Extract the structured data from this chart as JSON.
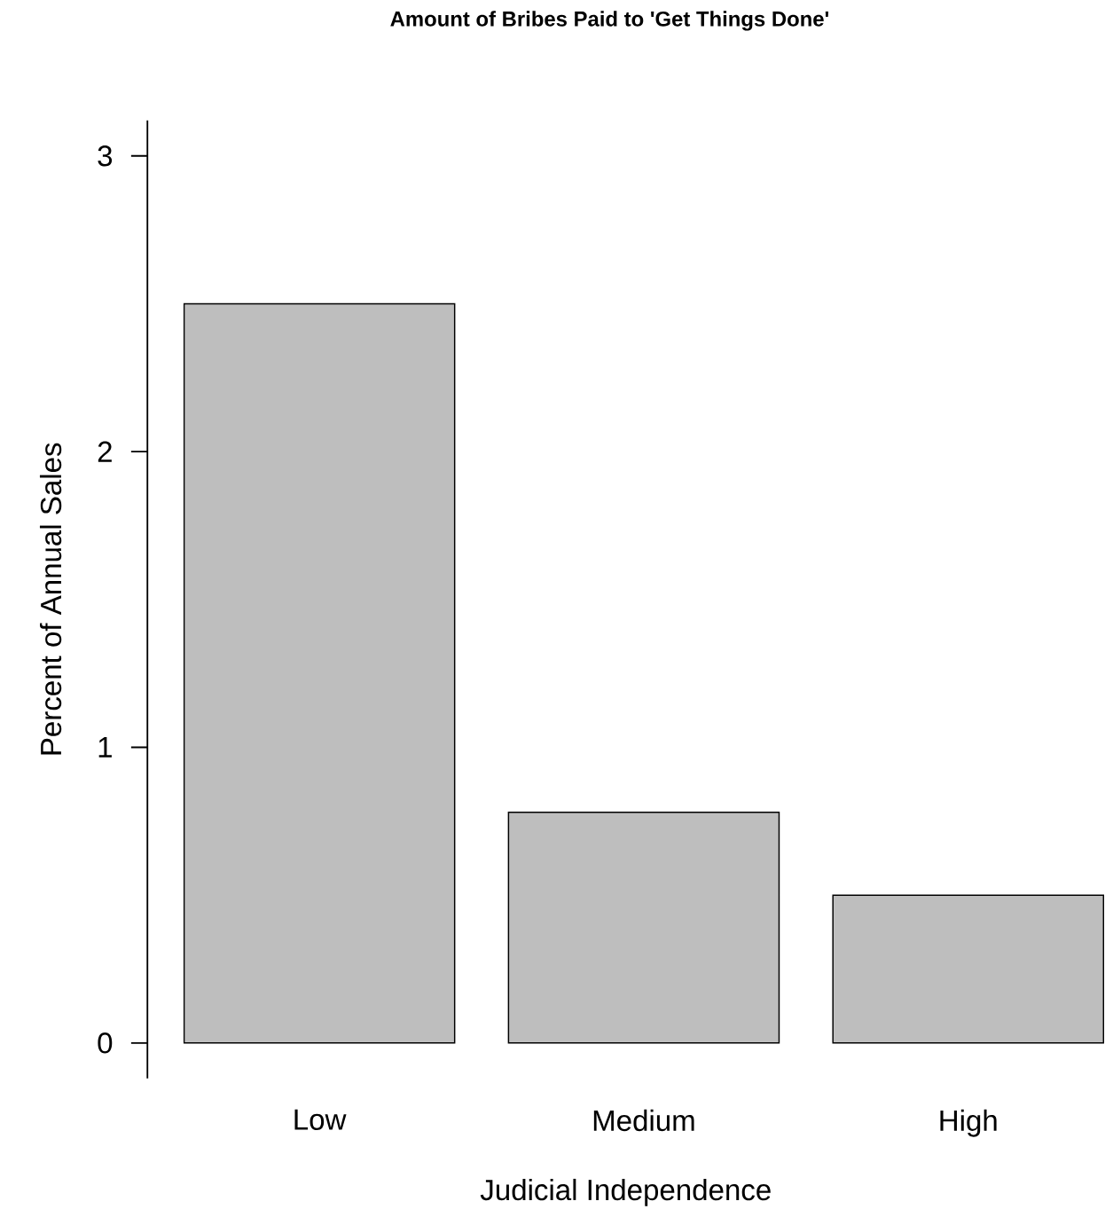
{
  "chart_data": {
    "type": "bar",
    "title": "Amount of Bribes Paid to 'Get Things Done'",
    "xlabel": "Judicial Independence",
    "ylabel": "Percent of Annual Sales",
    "categories": [
      "Low",
      "Medium",
      "High"
    ],
    "values": [
      2.5,
      0.78,
      0.5
    ],
    "color": "#bebebe",
    "ylim": [
      -0.12,
      3.12
    ],
    "yticks": [
      0,
      1,
      2,
      3
    ],
    "grid": false
  }
}
